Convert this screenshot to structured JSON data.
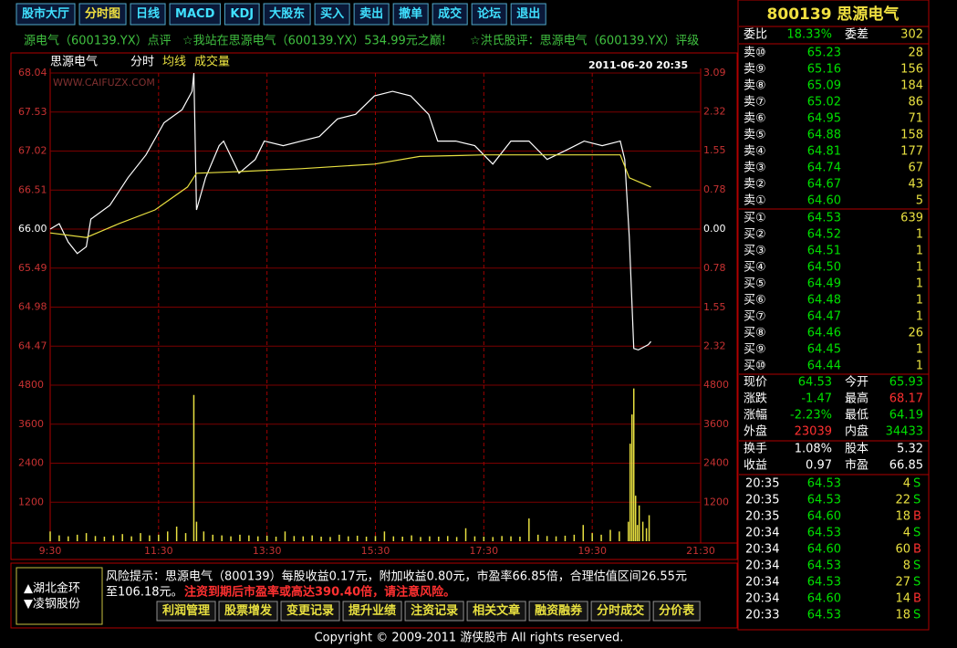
{
  "toolbar": [
    "股市大厅",
    "分时图",
    "日线",
    "MACD",
    "KDJ",
    "大股东",
    "买入",
    "卖出",
    "撤单",
    "成交",
    "论坛",
    "退出"
  ],
  "toolbar_active": 1,
  "ticker": [
    "源电气（600139.YX）点评",
    "☆我站在思源电气（600139.YX）534.99元之巅!",
    "☆洪氏股评：思源电气（600139.YX）评级"
  ],
  "chart_data": [
    {
      "type": "line",
      "title": "思源电气",
      "timestamp": "2011-06-20 20:35",
      "watermark": "WWW.CAIFUZX.COM",
      "xlim": [
        "9:30",
        "21:30"
      ],
      "xticks": [
        "9:30",
        "11:30",
        "13:30",
        "15:30",
        "17:30",
        "19:30",
        "21:30"
      ],
      "ylim": [
        63.96,
        68.04
      ],
      "yticks": [
        68.04,
        67.53,
        67.02,
        66.51,
        {
          "value": 66,
          "label": "66.00"
        },
        65.49,
        64.98,
        64.47
      ],
      "y2lim": [
        -3.09,
        3.09
      ],
      "y2ticks": [
        3.09,
        2.32,
        1.55,
        0.78,
        {
          "value": 0,
          "label": "0.00"
        },
        {
          "value": -0.78,
          "label": "0.78"
        },
        {
          "value": -1.55,
          "label": "1.55"
        },
        {
          "value": -2.32,
          "label": "2.32"
        }
      ],
      "grid": true,
      "series": [
        {
          "name": "分时",
          "color": "#ffffff",
          "x": [
            "9:30",
            "9:40",
            "9:50",
            "10:00",
            "10:10",
            "10:15",
            "10:36",
            "10:56",
            "11:16",
            "11:36",
            "11:56",
            "12:07",
            "12:09",
            "12:12",
            "12:22",
            "12:37",
            "12:42",
            "12:59",
            "13:17",
            "13:27",
            "13:48",
            "14:08",
            "14:28",
            "14:48",
            "15:08",
            "15:29",
            "15:49",
            "16:09",
            "16:29",
            "16:39",
            "16:59",
            "17:20",
            "17:40",
            "18:00",
            "18:20",
            "18:40",
            "19:01",
            "19:21",
            "19:41",
            "20:01",
            "20:06",
            "20:11",
            "20:16",
            "20:21",
            "20:32",
            "20:35"
          ],
          "values": [
            66.0,
            66.07,
            65.83,
            65.68,
            65.77,
            66.13,
            66.31,
            66.67,
            66.97,
            67.39,
            67.56,
            67.8,
            68.04,
            66.25,
            66.67,
            67.09,
            67.15,
            66.73,
            66.91,
            67.15,
            67.09,
            67.15,
            67.21,
            67.44,
            67.5,
            67.74,
            67.8,
            67.74,
            67.5,
            67.15,
            67.15,
            67.09,
            66.85,
            67.15,
            67.15,
            66.91,
            67.03,
            67.15,
            67.09,
            67.15,
            66.91,
            65.89,
            64.44,
            64.42,
            64.49,
            64.53
          ]
        },
        {
          "name": "均线",
          "color": "#e8e040",
          "x": [
            "9:30",
            "10:10",
            "10:46",
            "11:26",
            "12:02",
            "12:12",
            "12:57",
            "14:08",
            "15:29",
            "16:19",
            "17:30",
            "20:01",
            "20:11",
            "20:35"
          ],
          "values": [
            65.95,
            65.89,
            66.07,
            66.25,
            66.55,
            66.73,
            66.75,
            66.79,
            66.85,
            66.95,
            66.97,
            66.97,
            66.67,
            66.55
          ]
        }
      ]
    },
    {
      "type": "bar",
      "title": "成交量",
      "color": "#e8e040",
      "xlim": [
        "9:30",
        "21:30"
      ],
      "xticks": [
        "9:30",
        "11:30",
        "13:30",
        "15:30",
        "17:30",
        "19:30",
        "21:30"
      ],
      "ylim": [
        0,
        4800
      ],
      "yticks": [
        4800,
        3600,
        2400,
        1200
      ],
      "y2lim": [
        0,
        4800
      ],
      "y2ticks": [
        4800,
        3600,
        2400,
        1200
      ],
      "grid": true,
      "x": [
        "9:30",
        "9:40",
        "9:50",
        "10:00",
        "10:10",
        "10:20",
        "10:30",
        "10:40",
        "10:50",
        "11:00",
        "11:10",
        "11:20",
        "11:30",
        "11:40",
        "11:50",
        "12:00",
        "12:09",
        "12:12",
        "12:20",
        "12:30",
        "12:40",
        "12:50",
        "13:00",
        "13:10",
        "13:20",
        "13:30",
        "13:40",
        "13:50",
        "14:00",
        "14:10",
        "14:20",
        "14:30",
        "14:40",
        "14:50",
        "15:00",
        "15:10",
        "15:20",
        "15:30",
        "15:40",
        "15:50",
        "16:00",
        "16:10",
        "16:20",
        "16:30",
        "16:40",
        "16:50",
        "17:00",
        "17:10",
        "17:20",
        "17:30",
        "17:40",
        "17:50",
        "18:00",
        "18:10",
        "18:20",
        "18:30",
        "18:40",
        "18:50",
        "19:00",
        "19:10",
        "19:20",
        "19:30",
        "19:40",
        "19:50",
        "20:00",
        "20:10",
        "20:12",
        "20:14",
        "20:16",
        "20:18",
        "20:20",
        "20:22",
        "20:26",
        "20:30",
        "20:33"
      ],
      "values": [
        300,
        180,
        150,
        200,
        250,
        160,
        140,
        180,
        220,
        150,
        250,
        180,
        200,
        300,
        450,
        250,
        4500,
        600,
        300,
        200,
        180,
        150,
        200,
        180,
        150,
        170,
        140,
        300,
        160,
        150,
        180,
        140,
        130,
        200,
        150,
        170,
        140,
        160,
        300,
        150,
        140,
        180,
        130,
        150,
        140,
        160,
        130,
        400,
        150,
        140,
        130,
        160,
        150,
        140,
        700,
        200,
        160,
        150,
        170,
        200,
        500,
        250,
        200,
        350,
        300,
        600,
        3000,
        3900,
        4700,
        1400,
        500,
        1100,
        600,
        400,
        800
      ]
    }
  ],
  "quote": {
    "title": "800139 思源电气",
    "ratio": [
      "委比",
      "18.33%",
      "委差",
      "302"
    ],
    "sell": [
      [
        "卖⑩",
        "65.23",
        "28"
      ],
      [
        "卖⑨",
        "65.16",
        "156"
      ],
      [
        "卖⑧",
        "65.09",
        "184"
      ],
      [
        "卖⑦",
        "65.02",
        "86"
      ],
      [
        "卖⑥",
        "64.95",
        "71"
      ],
      [
        "卖⑤",
        "64.88",
        "158"
      ],
      [
        "卖④",
        "64.81",
        "177"
      ],
      [
        "卖③",
        "64.74",
        "67"
      ],
      [
        "卖②",
        "64.67",
        "43"
      ],
      [
        "卖①",
        "64.60",
        "5"
      ]
    ],
    "buy": [
      [
        "买①",
        "64.53",
        "639"
      ],
      [
        "买②",
        "64.52",
        "1"
      ],
      [
        "买③",
        "64.51",
        "1"
      ],
      [
        "买④",
        "64.50",
        "1"
      ],
      [
        "买⑤",
        "64.49",
        "1"
      ],
      [
        "买⑥",
        "64.48",
        "1"
      ],
      [
        "买⑦",
        "64.47",
        "1"
      ],
      [
        "买⑧",
        "64.46",
        "26"
      ],
      [
        "买⑨",
        "64.45",
        "1"
      ],
      [
        "买⑩",
        "64.44",
        "1"
      ]
    ],
    "stats": [
      [
        "现价",
        "64.53",
        "今开",
        "65.93"
      ],
      [
        "涨跌",
        "-1.47",
        "最高",
        "68.17"
      ],
      [
        "涨幅",
        "-2.23%",
        "最低",
        "64.19"
      ],
      [
        "外盘",
        "23039",
        "内盘",
        "34433"
      ],
      [
        "换手",
        "1.08%",
        "股本",
        "5.32"
      ],
      [
        "收益",
        "0.97",
        "市盈",
        "66.85"
      ]
    ],
    "stats_colors": [
      [
        "#00e000",
        "#00e000"
      ],
      [
        "#00e000",
        "#ff3030"
      ],
      [
        "#00e000",
        "#00e000"
      ],
      [
        "#ff3030",
        "#00e000"
      ],
      [
        "#ffffff",
        "#ffffff"
      ],
      [
        "#ffffff",
        "#ffffff"
      ]
    ],
    "trades": [
      [
        "20:35",
        "64.53",
        "4",
        "S"
      ],
      [
        "20:35",
        "64.53",
        "22",
        "S"
      ],
      [
        "20:35",
        "64.60",
        "18",
        "B"
      ],
      [
        "20:34",
        "64.53",
        "4",
        "S"
      ],
      [
        "20:34",
        "64.60",
        "60",
        "B"
      ],
      [
        "20:34",
        "64.53",
        "8",
        "S"
      ],
      [
        "20:34",
        "64.53",
        "27",
        "S"
      ],
      [
        "20:34",
        "64.60",
        "14",
        "B"
      ],
      [
        "20:33",
        "64.53",
        "18",
        "S"
      ]
    ],
    "trade_side_colors": [
      "#00e000",
      "#00e000",
      "#ff3030",
      "#00e000",
      "#ff3030",
      "#00e000",
      "#00e000",
      "#ff3030",
      "#00e000"
    ]
  },
  "related": [
    "▲湖北金环",
    "▼凌钢股份"
  ],
  "risk": [
    "风险提示：思源电气（800139）每股收益0.17元，附加收益0.80元，市盈率66.85倍，合理估值区间26.55元",
    "至106.18元。",
    "注资到期后市盈率或高达390.40倍，请注意风险。"
  ],
  "bottom_buttons": [
    "利润管理",
    "股票增发",
    "变更记录",
    "提升业绩",
    "注资记录",
    "相关文章",
    "融资融券",
    "分时成交",
    "分价表"
  ],
  "footer": "Copyright © 2009-2011 游侠股市  All rights reserved."
}
